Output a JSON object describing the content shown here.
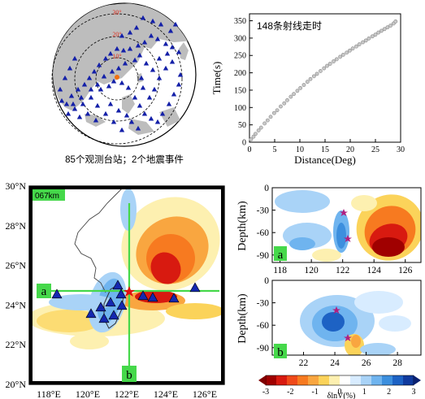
{
  "panel_a": {
    "caption": "85个观测台站；2个地震事件",
    "circle_labels": [
      "30°",
      "20°",
      "10°"
    ],
    "n_stations": 85,
    "n_events": 2
  },
  "panel_b": {
    "title": "148条射线走时",
    "chart_data": {
      "type": "scatter",
      "title": "148条射线走时",
      "xlabel": "Distance(Deg)",
      "ylabel": "Time(s)",
      "xlim": [
        0,
        30
      ],
      "ylim": [
        0,
        370
      ],
      "xticks": [
        "0",
        "5",
        "10",
        "15",
        "20",
        "25",
        "30"
      ],
      "yticks": [
        "0",
        "50",
        "100",
        "150",
        "200",
        "250",
        "300",
        "350"
      ],
      "x": [
        0.3,
        0.8,
        1.2,
        1.8,
        2.3,
        3.0,
        3.6,
        4.2,
        4.9,
        5.5,
        6.2,
        6.9,
        7.5,
        8.2,
        8.8,
        9.5,
        10.1,
        10.8,
        11.5,
        12.1,
        12.8,
        13.4,
        14.1,
        14.8,
        15.4,
        16.0,
        16.7,
        17.3,
        18.0,
        18.6,
        19.3,
        19.9,
        20.5,
        21.2,
        21.8,
        22.5,
        23.1,
        23.7,
        24.4,
        25.0,
        25.6,
        26.2,
        26.8,
        27.4,
        28.0,
        28.6,
        29.0
      ],
      "y": [
        8,
        16,
        24,
        34,
        42,
        54,
        63,
        73,
        84,
        92,
        103,
        112,
        121,
        131,
        139,
        148,
        156,
        165,
        174,
        182,
        190,
        197,
        205,
        213,
        220,
        226,
        233,
        239,
        246,
        252,
        258,
        264,
        270,
        276,
        282,
        288,
        293,
        299,
        305,
        310,
        316,
        321,
        326,
        331,
        336,
        342,
        348
      ]
    }
  },
  "panel_c": {
    "depth_label": "067km",
    "lat_ticks": [
      "30°N",
      "28°N",
      "26°N",
      "24°N",
      "22°N",
      "20°N"
    ],
    "lon_ticks": [
      "118°E",
      "120°E",
      "122°E",
      "124°E",
      "126°E"
    ],
    "profile_a": "a",
    "profile_b": "b"
  },
  "panel_d": {
    "ylabel": "Depth(km)",
    "yticks": [
      "0",
      "-30",
      "-60",
      "-90"
    ],
    "xticks": [
      "118",
      "120",
      "122",
      "124",
      "126"
    ],
    "tag": "a"
  },
  "panel_e": {
    "ylabel": "Depth(km)",
    "yticks": [
      "0",
      "-30",
      "-60",
      "-90"
    ],
    "xticks": [
      "22",
      "24",
      "26",
      "28"
    ],
    "tag": "b"
  },
  "colorbar": {
    "label": "δlnV(%)",
    "ticks": [
      "-3",
      "-2",
      "-1",
      "0",
      "1",
      "2",
      "3"
    ],
    "colors": [
      "#a00000",
      "#d81a10",
      "#f04a1a",
      "#f77a20",
      "#f9a640",
      "#fbd35a",
      "#fdf0b0",
      "#ffffff",
      "#d8ecff",
      "#a9d3f7",
      "#6fb4ef",
      "#3c8fde",
      "#1d62c4",
      "#103a9e"
    ]
  }
}
